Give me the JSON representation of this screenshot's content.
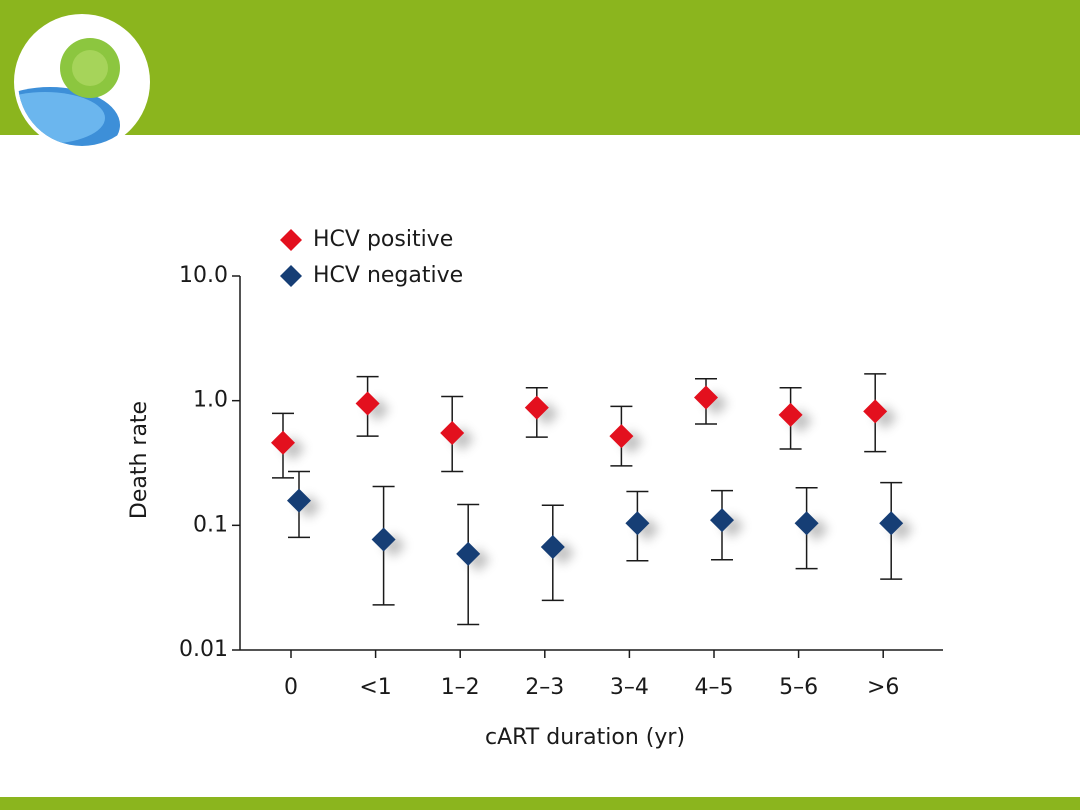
{
  "chart_data": {
    "type": "scatter",
    "y_label": "Death rate",
    "x_label": "cART duration (yr)",
    "categories": [
      "0",
      "<1",
      "1–2",
      "2–3",
      "3–4",
      "4–5",
      "5–6",
      ">6"
    ],
    "log_scale_y": true,
    "ylim": [
      0.01,
      10
    ],
    "yticks": [
      {
        "value": 10,
        "label": "10.0"
      },
      {
        "value": 1,
        "label": "1.0"
      },
      0.1,
      0.01
    ],
    "legend_position": "top-left",
    "series": [
      {
        "name": "HCV positive",
        "color": "#e3101e",
        "values": [
          0.46,
          0.95,
          0.55,
          0.88,
          0.52,
          1.06,
          0.77,
          0.82
        ],
        "lower": [
          0.24,
          0.52,
          0.27,
          0.51,
          0.3,
          0.65,
          0.41,
          0.39
        ],
        "upper": [
          0.79,
          1.56,
          1.08,
          1.27,
          0.9,
          1.5,
          1.27,
          1.64
        ]
      },
      {
        "name": "HCV negative",
        "color": "#163e75",
        "values": [
          0.158,
          0.077,
          0.059,
          0.067,
          0.104,
          0.11,
          0.104,
          0.104
        ],
        "lower": [
          0.08,
          0.023,
          0.016,
          0.025,
          0.052,
          0.053,
          0.045,
          0.037
        ],
        "upper": [
          0.27,
          0.205,
          0.147,
          0.145,
          0.187,
          0.19,
          0.2,
          0.22
        ]
      }
    ]
  }
}
